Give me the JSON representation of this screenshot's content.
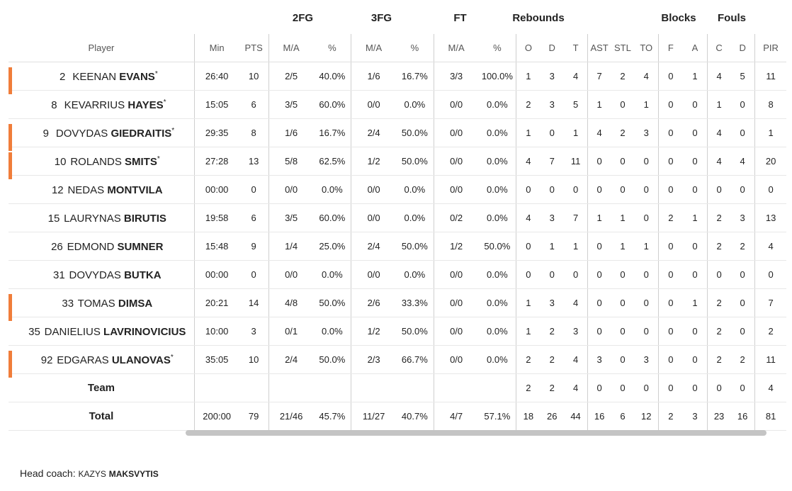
{
  "groups": {
    "fg2": "2FG",
    "fg3": "3FG",
    "ft": "FT",
    "rebounds": "Rebounds",
    "blocks": "Blocks",
    "fouls": "Fouls"
  },
  "columns": {
    "player": "Player",
    "min": "Min",
    "pts": "PTS",
    "fg2_ma": "M/A",
    "fg2_pct": "%",
    "fg3_ma": "M/A",
    "fg3_pct": "%",
    "ft_ma": "M/A",
    "ft_pct": "%",
    "reb_o": "O",
    "reb_d": "D",
    "reb_t": "T",
    "ast": "AST",
    "stl": "STL",
    "to": "TO",
    "blk_f": "F",
    "blk_a": "A",
    "foul_c": "C",
    "foul_d": "D",
    "pir": "PIR"
  },
  "accent_color": "#f07d3a",
  "players": [
    {
      "num": "2",
      "first": "KEENAN",
      "last": "EVANS",
      "star": "*",
      "starter": true,
      "min": "26:40",
      "pts": "10",
      "fg2_ma": "2/5",
      "fg2_pct": "40.0%",
      "fg3_ma": "1/6",
      "fg3_pct": "16.7%",
      "ft_ma": "3/3",
      "ft_pct": "100.0%",
      "o": "1",
      "d": "3",
      "t": "4",
      "ast": "7",
      "stl": "2",
      "to": "4",
      "bf": "0",
      "ba": "1",
      "fc": "4",
      "fd": "5",
      "pir": "11"
    },
    {
      "num": "8",
      "first": "KEVARRIUS",
      "last": "HAYES",
      "star": "*",
      "starter": false,
      "min": "15:05",
      "pts": "6",
      "fg2_ma": "3/5",
      "fg2_pct": "60.0%",
      "fg3_ma": "0/0",
      "fg3_pct": "0.0%",
      "ft_ma": "0/0",
      "ft_pct": "0.0%",
      "o": "2",
      "d": "3",
      "t": "5",
      "ast": "1",
      "stl": "0",
      "to": "1",
      "bf": "0",
      "ba": "0",
      "fc": "1",
      "fd": "0",
      "pir": "8"
    },
    {
      "num": "9",
      "first": "DOVYDAS",
      "last": "GIEDRAITIS",
      "star": "*",
      "starter": true,
      "min": "29:35",
      "pts": "8",
      "fg2_ma": "1/6",
      "fg2_pct": "16.7%",
      "fg3_ma": "2/4",
      "fg3_pct": "50.0%",
      "ft_ma": "0/0",
      "ft_pct": "0.0%",
      "o": "1",
      "d": "0",
      "t": "1",
      "ast": "4",
      "stl": "2",
      "to": "3",
      "bf": "0",
      "ba": "0",
      "fc": "4",
      "fd": "0",
      "pir": "1"
    },
    {
      "num": "10",
      "first": "ROLANDS",
      "last": "SMITS",
      "star": "*",
      "starter": true,
      "min": "27:28",
      "pts": "13",
      "fg2_ma": "5/8",
      "fg2_pct": "62.5%",
      "fg3_ma": "1/2",
      "fg3_pct": "50.0%",
      "ft_ma": "0/0",
      "ft_pct": "0.0%",
      "o": "4",
      "d": "7",
      "t": "11",
      "ast": "0",
      "stl": "0",
      "to": "0",
      "bf": "0",
      "ba": "0",
      "fc": "4",
      "fd": "4",
      "pir": "20"
    },
    {
      "num": "12",
      "first": "NEDAS",
      "last": "MONTVILA",
      "star": "",
      "starter": false,
      "min": "00:00",
      "pts": "0",
      "fg2_ma": "0/0",
      "fg2_pct": "0.0%",
      "fg3_ma": "0/0",
      "fg3_pct": "0.0%",
      "ft_ma": "0/0",
      "ft_pct": "0.0%",
      "o": "0",
      "d": "0",
      "t": "0",
      "ast": "0",
      "stl": "0",
      "to": "0",
      "bf": "0",
      "ba": "0",
      "fc": "0",
      "fd": "0",
      "pir": "0"
    },
    {
      "num": "15",
      "first": "LAURYNAS",
      "last": "BIRUTIS",
      "star": "",
      "starter": false,
      "min": "19:58",
      "pts": "6",
      "fg2_ma": "3/5",
      "fg2_pct": "60.0%",
      "fg3_ma": "0/0",
      "fg3_pct": "0.0%",
      "ft_ma": "0/2",
      "ft_pct": "0.0%",
      "o": "4",
      "d": "3",
      "t": "7",
      "ast": "1",
      "stl": "1",
      "to": "0",
      "bf": "2",
      "ba": "1",
      "fc": "2",
      "fd": "3",
      "pir": "13"
    },
    {
      "num": "26",
      "first": "EDMOND",
      "last": "SUMNER",
      "star": "",
      "starter": false,
      "min": "15:48",
      "pts": "9",
      "fg2_ma": "1/4",
      "fg2_pct": "25.0%",
      "fg3_ma": "2/4",
      "fg3_pct": "50.0%",
      "ft_ma": "1/2",
      "ft_pct": "50.0%",
      "o": "0",
      "d": "1",
      "t": "1",
      "ast": "0",
      "stl": "1",
      "to": "1",
      "bf": "0",
      "ba": "0",
      "fc": "2",
      "fd": "2",
      "pir": "4"
    },
    {
      "num": "31",
      "first": "DOVYDAS",
      "last": "BUTKA",
      "star": "",
      "starter": false,
      "min": "00:00",
      "pts": "0",
      "fg2_ma": "0/0",
      "fg2_pct": "0.0%",
      "fg3_ma": "0/0",
      "fg3_pct": "0.0%",
      "ft_ma": "0/0",
      "ft_pct": "0.0%",
      "o": "0",
      "d": "0",
      "t": "0",
      "ast": "0",
      "stl": "0",
      "to": "0",
      "bf": "0",
      "ba": "0",
      "fc": "0",
      "fd": "0",
      "pir": "0"
    },
    {
      "num": "33",
      "first": "TOMAS",
      "last": "DIMSA",
      "star": "",
      "starter": true,
      "min": "20:21",
      "pts": "14",
      "fg2_ma": "4/8",
      "fg2_pct": "50.0%",
      "fg3_ma": "2/6",
      "fg3_pct": "33.3%",
      "ft_ma": "0/0",
      "ft_pct": "0.0%",
      "o": "1",
      "d": "3",
      "t": "4",
      "ast": "0",
      "stl": "0",
      "to": "0",
      "bf": "0",
      "ba": "1",
      "fc": "2",
      "fd": "0",
      "pir": "7"
    },
    {
      "num": "35",
      "first": "DANIELIUS",
      "last": "LAVRINOVICIUS",
      "star": "",
      "starter": false,
      "min": "10:00",
      "pts": "3",
      "fg2_ma": "0/1",
      "fg2_pct": "0.0%",
      "fg3_ma": "1/2",
      "fg3_pct": "50.0%",
      "ft_ma": "0/0",
      "ft_pct": "0.0%",
      "o": "1",
      "d": "2",
      "t": "3",
      "ast": "0",
      "stl": "0",
      "to": "0",
      "bf": "0",
      "ba": "0",
      "fc": "2",
      "fd": "0",
      "pir": "2"
    },
    {
      "num": "92",
      "first": "EDGARAS",
      "last": "ULANOVAS",
      "star": "*",
      "starter": true,
      "min": "35:05",
      "pts": "10",
      "fg2_ma": "2/4",
      "fg2_pct": "50.0%",
      "fg3_ma": "2/3",
      "fg3_pct": "66.7%",
      "ft_ma": "0/0",
      "ft_pct": "0.0%",
      "o": "2",
      "d": "2",
      "t": "4",
      "ast": "3",
      "stl": "0",
      "to": "3",
      "bf": "0",
      "ba": "0",
      "fc": "2",
      "fd": "2",
      "pir": "11"
    }
  ],
  "team": {
    "label": "Team",
    "o": "2",
    "d": "2",
    "t": "4",
    "ast": "0",
    "stl": "0",
    "to": "0",
    "bf": "0",
    "ba": "0",
    "fc": "0",
    "fd": "0",
    "pir": "4"
  },
  "total": {
    "label": "Total",
    "min": "200:00",
    "pts": "79",
    "fg2_ma": "21/46",
    "fg2_pct": "45.7%",
    "fg3_ma": "11/27",
    "fg3_pct": "40.7%",
    "ft_ma": "4/7",
    "ft_pct": "57.1%",
    "o": "18",
    "d": "26",
    "t": "44",
    "ast": "16",
    "stl": "6",
    "to": "12",
    "bf": "2",
    "ba": "3",
    "fc": "23",
    "fd": "16",
    "pir": "81"
  },
  "coach": {
    "label": "Head coach: ",
    "first": "KAZYS",
    "last": "MAKSVYTIS"
  }
}
